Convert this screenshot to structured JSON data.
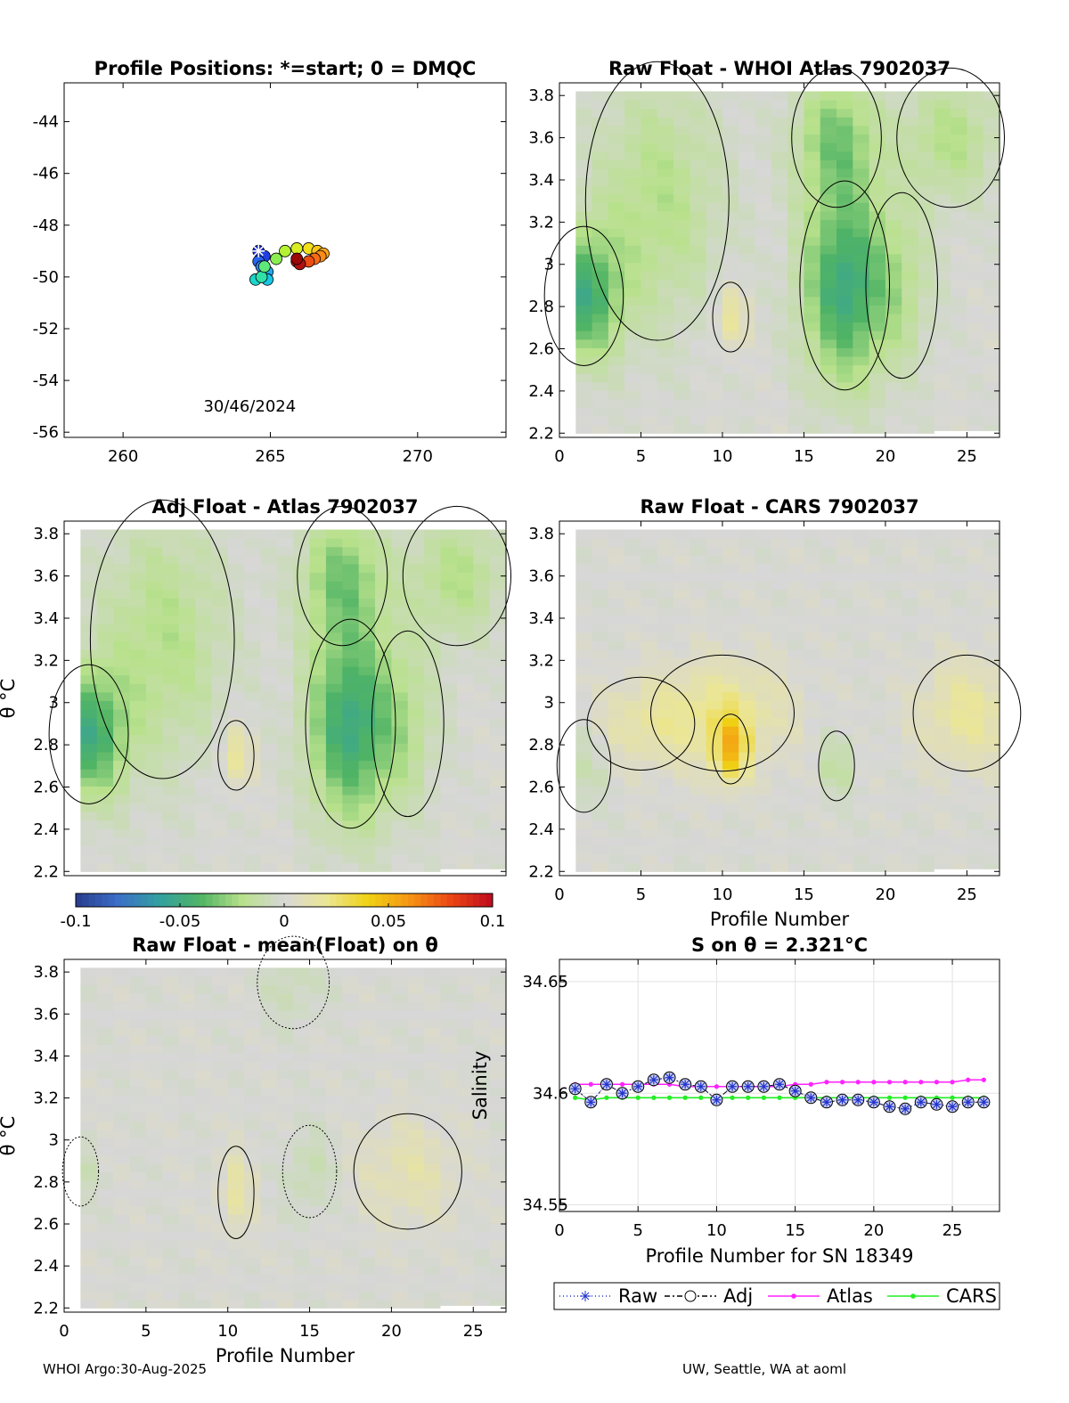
{
  "footer": {
    "left": "WHOI Argo:30-Aug-2025",
    "right": "UW, Seattle, WA at aoml"
  },
  "colorbar": {
    "ticks": [
      "-0.1",
      "-0.05",
      "0",
      "0.05",
      "0.1"
    ],
    "range": [
      -0.1,
      0.1
    ]
  },
  "chart_data": [
    {
      "id": "positions",
      "type": "scatter",
      "title": "Profile Positions: *=start; 0 = DMQC",
      "xlim": [
        258,
        273
      ],
      "ylim": [
        -56.2,
        -42.5
      ],
      "xticks": [
        "260",
        "265",
        "270"
      ],
      "yticks": [
        "-44",
        "-46",
        "-48",
        "-50",
        "-52",
        "-54",
        "-56"
      ],
      "annotation": "30/46/2024",
      "points": [
        {
          "lon": 264.6,
          "lat": -49.0,
          "c": "#1a2ccc",
          "start": true
        },
        {
          "lon": 264.8,
          "lat": -49.2,
          "c": "#1f3fe0"
        },
        {
          "lon": 264.6,
          "lat": -49.4,
          "c": "#2a64ef"
        },
        {
          "lon": 264.7,
          "lat": -49.6,
          "c": "#2e84f5"
        },
        {
          "lon": 264.9,
          "lat": -49.8,
          "c": "#22a8f0"
        },
        {
          "lon": 264.9,
          "lat": -50.1,
          "c": "#18c6e6"
        },
        {
          "lon": 264.5,
          "lat": -50.1,
          "c": "#1cd6cc"
        },
        {
          "lon": 264.7,
          "lat": -50.0,
          "c": "#2fe0a8"
        },
        {
          "lon": 264.8,
          "lat": -49.6,
          "c": "#5ee87a"
        },
        {
          "lon": 265.2,
          "lat": -49.3,
          "c": "#8aee52"
        },
        {
          "lon": 265.5,
          "lat": -49.0,
          "c": "#b4f232"
        },
        {
          "lon": 265.9,
          "lat": -48.9,
          "c": "#d8ee22"
        },
        {
          "lon": 266.3,
          "lat": -48.9,
          "c": "#f2e01c"
        },
        {
          "lon": 266.6,
          "lat": -49.0,
          "c": "#f8c41a"
        },
        {
          "lon": 266.8,
          "lat": -49.1,
          "c": "#fca61a"
        },
        {
          "lon": 266.7,
          "lat": -49.2,
          "c": "#fb8a18"
        },
        {
          "lon": 266.5,
          "lat": -49.3,
          "c": "#f46c16"
        },
        {
          "lon": 266.3,
          "lat": -49.4,
          "c": "#ea4e14"
        },
        {
          "lon": 265.9,
          "lat": -49.4,
          "c": "#d62c12"
        },
        {
          "lon": 266.0,
          "lat": -49.5,
          "c": "#b01010"
        },
        {
          "lon": 265.9,
          "lat": -49.3,
          "c": "#9a0808"
        }
      ]
    },
    {
      "id": "raw_whoi",
      "type": "heatmap",
      "title": "Raw Float - WHOI Atlas  7902037",
      "xlim": [
        0,
        27
      ],
      "ylim": [
        2.18,
        3.86
      ],
      "xticks": [
        "0",
        "5",
        "10",
        "15",
        "20",
        "25"
      ],
      "yticks": [
        "2.2",
        "2.4",
        "2.6",
        "2.8",
        "3",
        "3.2",
        "3.4",
        "3.6",
        "3.8"
      ],
      "blobs": [
        {
          "x": 1.5,
          "y": 2.85,
          "v": -0.045,
          "sx": 2.2,
          "sy": 0.3
        },
        {
          "x": 17.5,
          "y": 2.9,
          "v": -0.05,
          "sx": 2.5,
          "sy": 0.45
        },
        {
          "x": 17,
          "y": 3.6,
          "v": -0.03,
          "sx": 2.5,
          "sy": 0.3
        },
        {
          "x": 6,
          "y": 3.3,
          "v": -0.02,
          "sx": 4,
          "sy": 0.6
        },
        {
          "x": 24,
          "y": 3.6,
          "v": -0.02,
          "sx": 3,
          "sy": 0.3
        },
        {
          "x": 10.5,
          "y": 2.75,
          "v": 0.02,
          "sx": 1,
          "sy": 0.15
        },
        {
          "x": 21,
          "y": 2.9,
          "v": -0.015,
          "sx": 2,
          "sy": 0.4
        }
      ]
    },
    {
      "id": "adj_atlas",
      "type": "heatmap",
      "title": "Adj Float - Atlas  7902037",
      "xlim": [
        0,
        27
      ],
      "ylim": [
        2.18,
        3.86
      ],
      "yticks": [
        "2.2",
        "2.4",
        "2.6",
        "2.8",
        "3",
        "3.2",
        "3.4",
        "3.6",
        "3.8"
      ],
      "ylabel": "θ °C",
      "blobs": [
        {
          "x": 1.5,
          "y": 2.85,
          "v": -0.045,
          "sx": 2.2,
          "sy": 0.3
        },
        {
          "x": 17.5,
          "y": 2.9,
          "v": -0.05,
          "sx": 2.5,
          "sy": 0.45
        },
        {
          "x": 17,
          "y": 3.6,
          "v": -0.03,
          "sx": 2.5,
          "sy": 0.3
        },
        {
          "x": 6,
          "y": 3.3,
          "v": -0.02,
          "sx": 4,
          "sy": 0.6
        },
        {
          "x": 24,
          "y": 3.6,
          "v": -0.02,
          "sx": 3,
          "sy": 0.3
        },
        {
          "x": 10.5,
          "y": 2.75,
          "v": 0.02,
          "sx": 1,
          "sy": 0.15
        },
        {
          "x": 21,
          "y": 2.9,
          "v": -0.015,
          "sx": 2,
          "sy": 0.4
        }
      ]
    },
    {
      "id": "raw_cars",
      "type": "heatmap",
      "title": "Raw Float - CARS  7902037",
      "xlim": [
        0,
        27
      ],
      "ylim": [
        2.18,
        3.86
      ],
      "xticks": [
        "0",
        "5",
        "10",
        "15",
        "20",
        "25"
      ],
      "yticks": [
        "2.2",
        "2.4",
        "2.6",
        "2.8",
        "3",
        "3.2",
        "3.4",
        "3.6",
        "3.8"
      ],
      "xlabel": "Profile Number",
      "blobs": [
        {
          "x": 10.5,
          "y": 2.78,
          "v": 0.04,
          "sx": 1,
          "sy": 0.15
        },
        {
          "x": 10,
          "y": 2.95,
          "v": 0.02,
          "sx": 4,
          "sy": 0.25
        },
        {
          "x": 25,
          "y": 2.95,
          "v": 0.018,
          "sx": 3,
          "sy": 0.25
        },
        {
          "x": 5,
          "y": 2.9,
          "v": 0.012,
          "sx": 3,
          "sy": 0.2
        },
        {
          "x": 17,
          "y": 2.7,
          "v": -0.015,
          "sx": 1,
          "sy": 0.15
        },
        {
          "x": 1.5,
          "y": 2.7,
          "v": -0.01,
          "sx": 1.5,
          "sy": 0.2
        }
      ]
    },
    {
      "id": "raw_mean",
      "type": "heatmap",
      "title": "Raw Float - mean(Float) on θ",
      "xlim": [
        0,
        27
      ],
      "ylim": [
        2.18,
        3.86
      ],
      "xticks": [
        "0",
        "5",
        "10",
        "15",
        "20",
        "25"
      ],
      "yticks": [
        "2.2",
        "2.4",
        "2.6",
        "2.8",
        "3",
        "3.2",
        "3.4",
        "3.6",
        "3.8"
      ],
      "xlabel": "Profile Number",
      "ylabel": "θ °C",
      "blobs": [
        {
          "x": 21,
          "y": 2.85,
          "v": 0.012,
          "sx": 3,
          "sy": 0.25
        },
        {
          "x": 10.5,
          "y": 2.75,
          "v": 0.015,
          "sx": 1,
          "sy": 0.2
        },
        {
          "x": 15,
          "y": 2.85,
          "v": -0.01,
          "sx": 1.5,
          "sy": 0.2
        },
        {
          "x": 1,
          "y": 2.85,
          "v": -0.008,
          "sx": 1,
          "sy": 0.15
        },
        {
          "x": 14,
          "y": 3.75,
          "v": -0.008,
          "sx": 2,
          "sy": 0.2
        }
      ]
    },
    {
      "id": "salinity",
      "type": "line",
      "title": "S on θ = 2.321°C",
      "xlim": [
        0,
        28
      ],
      "ylim": [
        34.547,
        34.66
      ],
      "xticks": [
        "0",
        "5",
        "10",
        "15",
        "20",
        "25"
      ],
      "yticks": [
        "34.55",
        "34.6",
        "34.65"
      ],
      "xlabel": "Profile Number for SN 18349",
      "ylabel": "Salinity",
      "x": [
        1,
        2,
        3,
        4,
        5,
        6,
        7,
        8,
        9,
        10,
        11,
        12,
        13,
        14,
        15,
        16,
        17,
        18,
        19,
        20,
        21,
        22,
        23,
        24,
        25,
        26,
        27
      ],
      "series": [
        {
          "name": "Raw",
          "values": [
            34.602,
            34.596,
            34.604,
            34.6,
            34.603,
            34.606,
            34.607,
            34.604,
            34.603,
            34.597,
            34.603,
            34.603,
            34.603,
            34.604,
            34.601,
            34.598,
            34.596,
            34.597,
            34.597,
            34.596,
            34.594,
            34.593,
            34.596,
            34.595,
            34.594,
            34.596,
            34.596
          ]
        },
        {
          "name": "Adj",
          "values": [
            34.602,
            34.596,
            34.604,
            34.6,
            34.603,
            34.606,
            34.607,
            34.604,
            34.603,
            34.597,
            34.603,
            34.603,
            34.603,
            34.604,
            34.601,
            34.598,
            34.596,
            34.597,
            34.597,
            34.596,
            34.594,
            34.593,
            34.596,
            34.595,
            34.594,
            34.596,
            34.596
          ]
        },
        {
          "name": "Atlas",
          "values": [
            34.604,
            34.604,
            34.604,
            34.604,
            34.604,
            34.604,
            34.604,
            34.603,
            34.603,
            34.603,
            34.603,
            34.603,
            34.603,
            34.603,
            34.604,
            34.604,
            34.605,
            34.605,
            34.605,
            34.605,
            34.605,
            34.605,
            34.605,
            34.605,
            34.605,
            34.606,
            34.606
          ]
        },
        {
          "name": "CARS",
          "values": [
            34.598,
            34.597,
            34.598,
            34.598,
            34.598,
            34.598,
            34.598,
            34.598,
            34.598,
            34.598,
            34.598,
            34.598,
            34.598,
            34.598,
            34.598,
            34.598,
            34.598,
            34.598,
            34.598,
            34.598,
            34.598,
            34.598,
            34.598,
            34.598,
            34.598,
            34.598,
            34.598
          ]
        }
      ],
      "legend": [
        "Raw",
        "Adj",
        "Atlas",
        "CARS"
      ]
    }
  ]
}
